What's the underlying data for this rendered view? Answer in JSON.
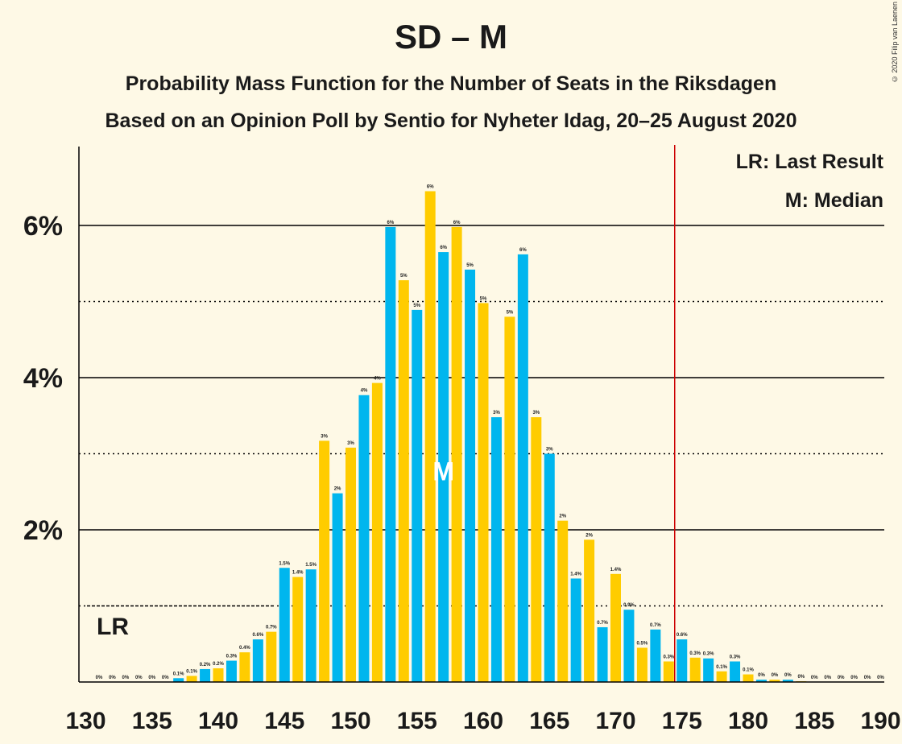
{
  "title": "SD – M",
  "subtitle1": "Probability Mass Function for the Number of Seats in the Riksdagen",
  "subtitle2": "Based on an Opinion Poll by Sentio for Nyheter Idag, 20–25 August 2020",
  "copyright": "© 2020 Filip van Laenen",
  "legend": {
    "last_result": "LR: Last Result",
    "median": "M: Median"
  },
  "markers": {
    "lr_label": "LR",
    "median_label": "M"
  },
  "colors": {
    "blue": "#00b6ee",
    "yellow": "#ffcc00",
    "last_result_line": "#cc0000",
    "background": "#fef9e6"
  },
  "chart_data": {
    "type": "bar",
    "xlabel": "",
    "ylabel": "",
    "x_ticks": [
      130,
      135,
      140,
      145,
      150,
      155,
      160,
      165,
      170,
      175,
      180,
      185,
      190
    ],
    "y_ticks": [
      "2%",
      "4%",
      "6%"
    ],
    "y_tick_values": [
      2,
      4,
      6
    ],
    "ylim": [
      0,
      7
    ],
    "gridlines": {
      "solid": [
        2,
        4,
        6
      ],
      "dotted": [
        1,
        3,
        5
      ]
    },
    "last_result_seat": 132,
    "majority_line_seat": 175,
    "median_seat": 157,
    "seats": [
      131,
      132,
      133,
      134,
      135,
      136,
      137,
      138,
      139,
      140,
      141,
      142,
      143,
      144,
      145,
      146,
      147,
      148,
      149,
      150,
      151,
      152,
      153,
      154,
      155,
      156,
      157,
      158,
      159,
      160,
      161,
      162,
      163,
      164,
      165,
      166,
      167,
      168,
      169,
      170,
      171,
      172,
      173,
      174,
      175,
      176,
      177,
      178,
      179,
      180,
      181,
      182,
      183,
      184,
      185,
      186,
      187,
      188,
      189,
      190
    ],
    "values": [
      0,
      0,
      0,
      0,
      0,
      0,
      0.05,
      0.08,
      0.17,
      0.18,
      0.28,
      0.39,
      0.56,
      0.66,
      1.5,
      1.38,
      1.48,
      3.17,
      2.48,
      3.08,
      3.77,
      3.93,
      5.98,
      5.28,
      4.89,
      6.45,
      5.65,
      5.98,
      5.42,
      4.98,
      3.48,
      4.8,
      5.62,
      3.48,
      3.0,
      2.12,
      1.36,
      1.87,
      0.72,
      1.42,
      0.95,
      0.45,
      0.69,
      0.27,
      0.56,
      0.32,
      0.31,
      0.14,
      0.27,
      0.1,
      0.03,
      0.03,
      0.03,
      0.01,
      0,
      0,
      0,
      0,
      0,
      0
    ],
    "labels": [
      "0%",
      "0%",
      "0%",
      "0%",
      "0%",
      "0%",
      "0.1%",
      "0.1%",
      "0.2%",
      "0.2%",
      "0.3%",
      "0.4%",
      "0.6%",
      "0.7%",
      "1.5%",
      "1.4%",
      "1.5%",
      "3%",
      "2%",
      "3%",
      "4%",
      "4%",
      "6%",
      "5%",
      "5%",
      "6%",
      "6%",
      "6%",
      "5%",
      "5%",
      "3%",
      "5%",
      "6%",
      "3%",
      "3%",
      "2%",
      "1.4%",
      "2%",
      "0.7%",
      "1.4%",
      "0.9%",
      "0.5%",
      "0.7%",
      "0.3%",
      "0.6%",
      "0.3%",
      "0.3%",
      "0.1%",
      "0.3%",
      "0.1%",
      "0%",
      "0%",
      "0%",
      "0%",
      "0%",
      "0%",
      "0%",
      "0%",
      "0%",
      "0%"
    ]
  }
}
